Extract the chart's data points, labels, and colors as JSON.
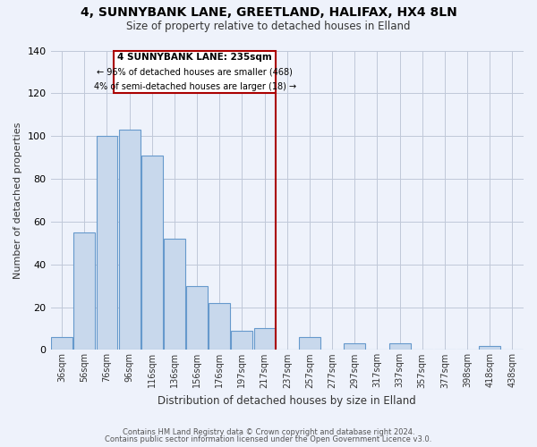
{
  "title1": "4, SUNNYBANK LANE, GREETLAND, HALIFAX, HX4 8LN",
  "title2": "Size of property relative to detached houses in Elland",
  "xlabel": "Distribution of detached houses by size in Elland",
  "ylabel": "Number of detached properties",
  "categories": [
    "36sqm",
    "56sqm",
    "76sqm",
    "96sqm",
    "116sqm",
    "136sqm",
    "156sqm",
    "176sqm",
    "197sqm",
    "217sqm",
    "237sqm",
    "257sqm",
    "277sqm",
    "297sqm",
    "317sqm",
    "337sqm",
    "357sqm",
    "377sqm",
    "398sqm",
    "418sqm",
    "438sqm"
  ],
  "values": [
    6,
    55,
    100,
    103,
    91,
    52,
    30,
    22,
    9,
    10,
    0,
    6,
    0,
    3,
    0,
    3,
    0,
    0,
    0,
    2,
    0
  ],
  "bar_color": "#c8d8ec",
  "bar_edge_color": "#6699cc",
  "marker_label": "4 SUNNYBANK LANE: 235sqm",
  "annotation_line1": "← 96% of detached houses are smaller (468)",
  "annotation_line2": "4% of semi-detached houses are larger (18) →",
  "vline_color": "#aa0000",
  "background_color": "#eef2fb",
  "footer1": "Contains HM Land Registry data © Crown copyright and database right 2024.",
  "footer2": "Contains public sector information licensed under the Open Government Licence v3.0.",
  "ylim": [
    0,
    140
  ],
  "yticks": [
    0,
    20,
    40,
    60,
    80,
    100,
    120,
    140
  ]
}
